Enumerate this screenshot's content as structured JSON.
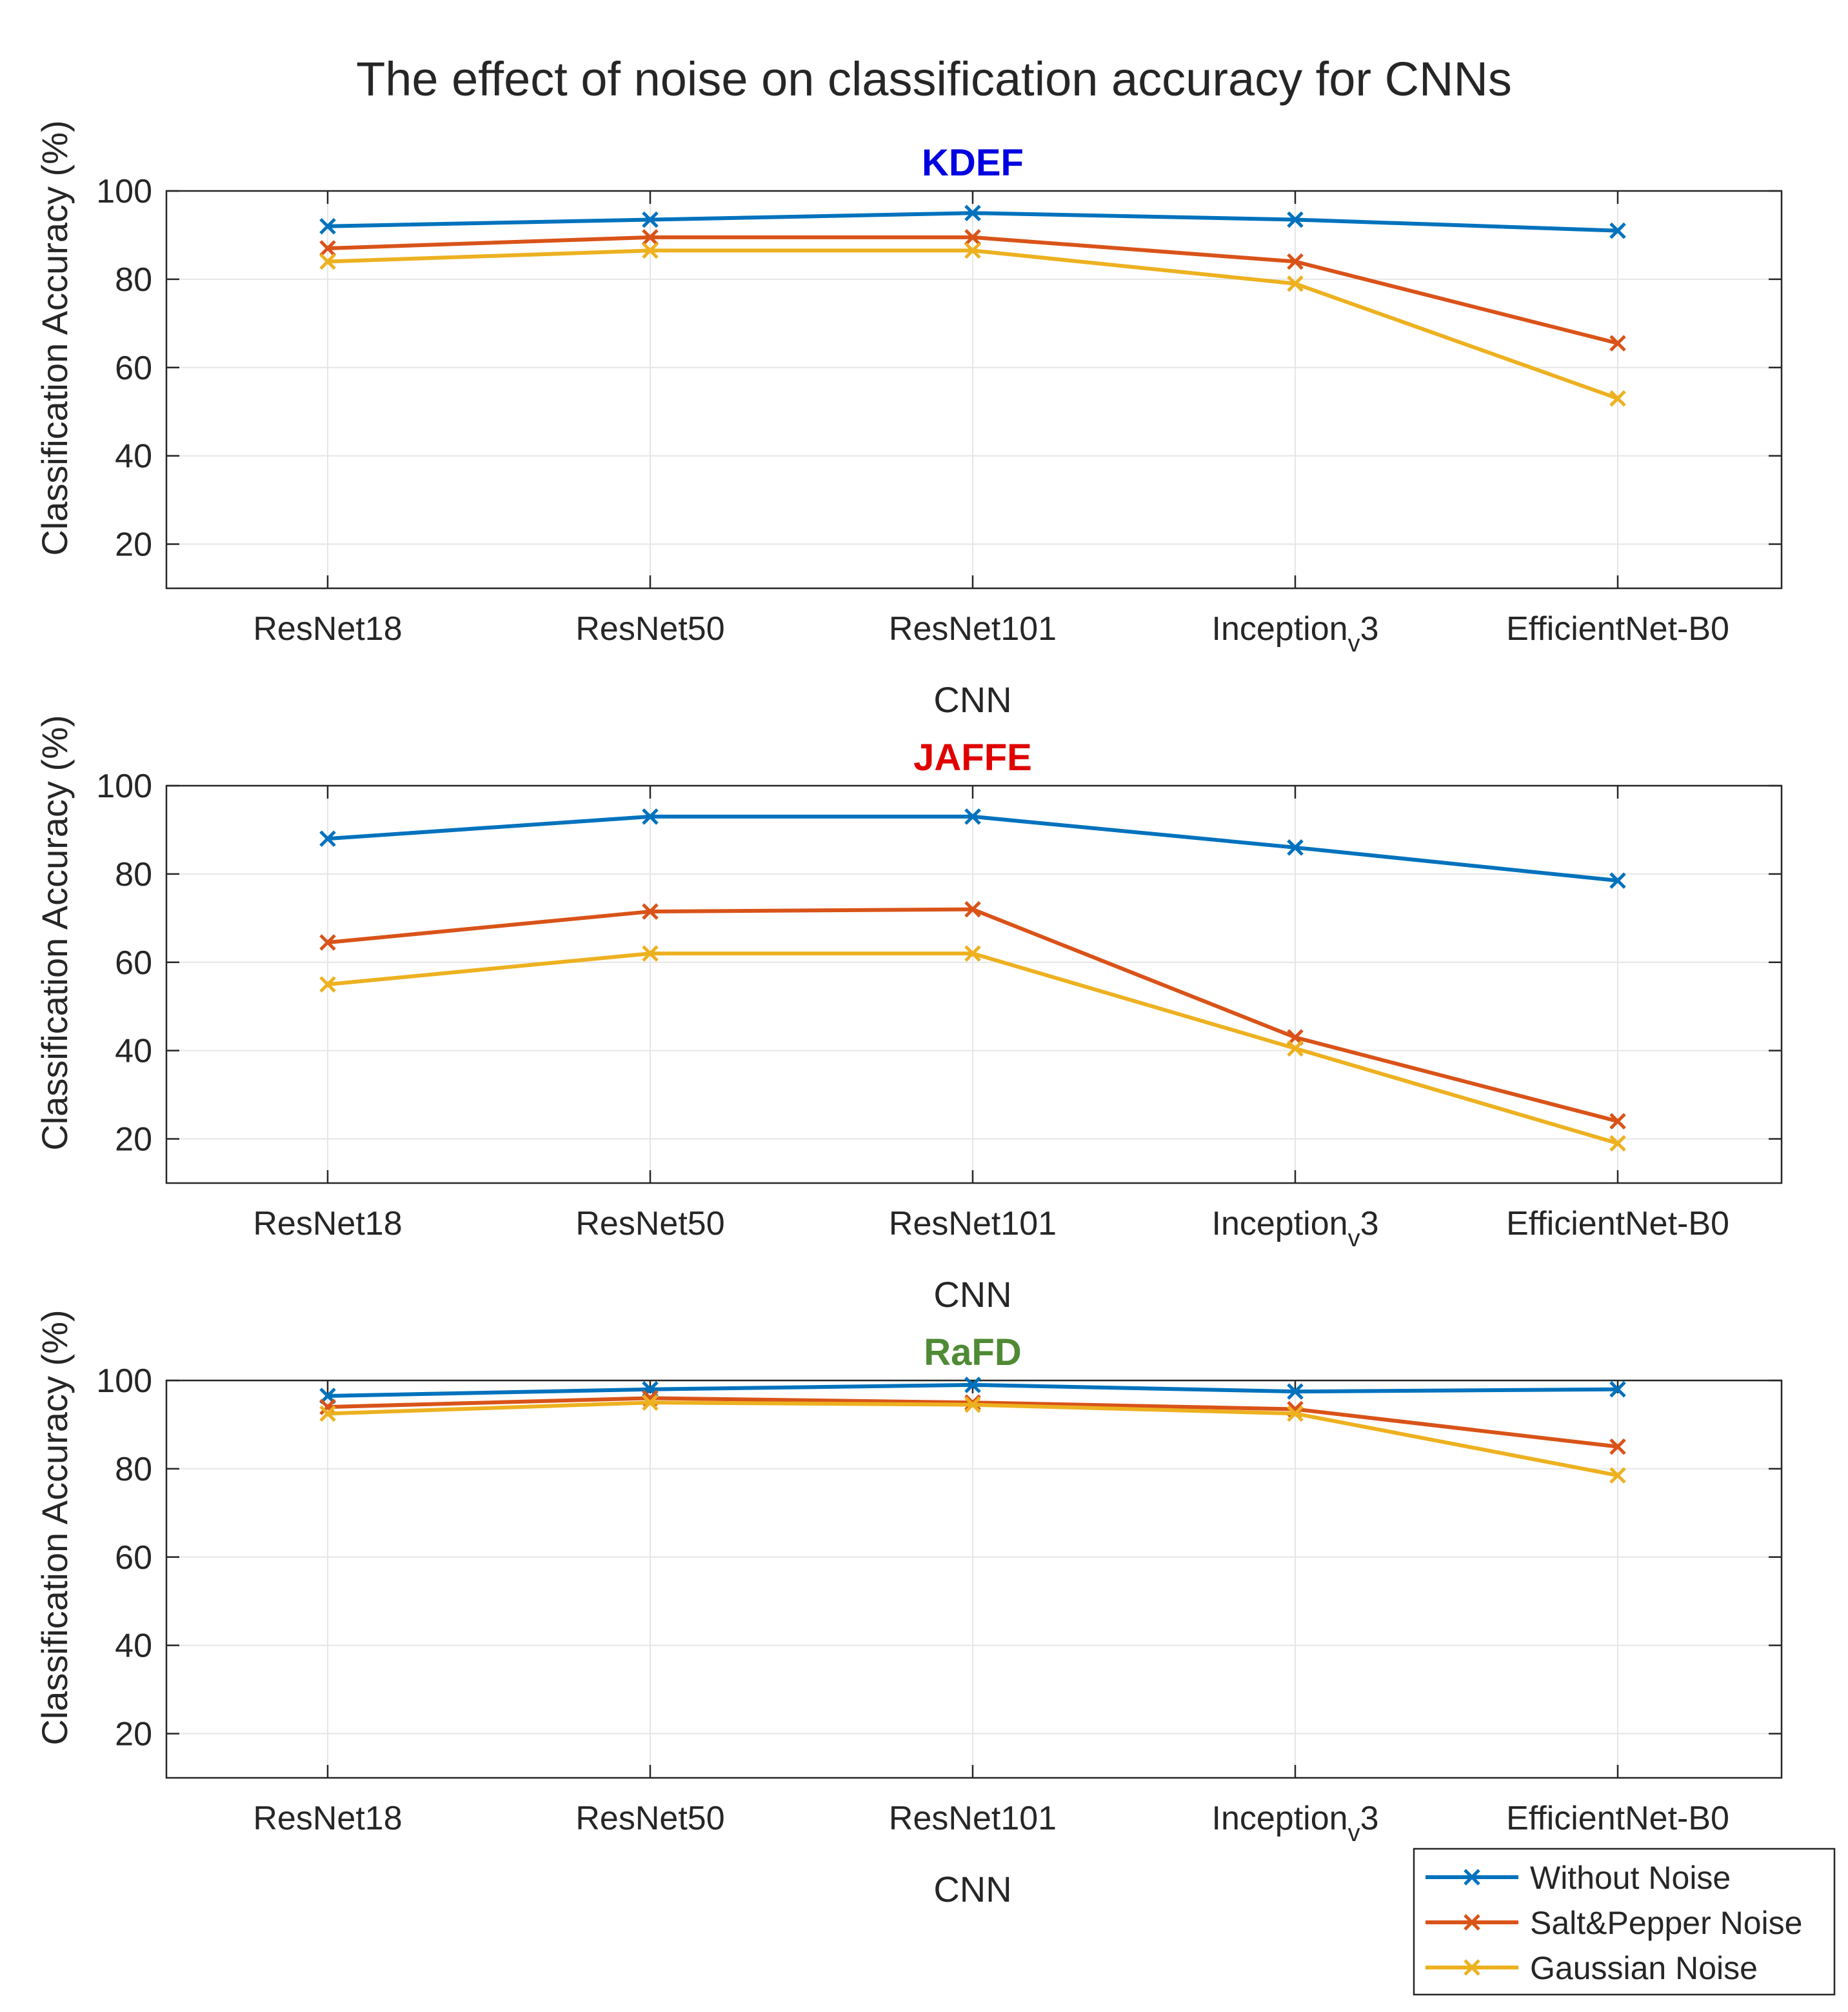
{
  "chart_data": {
    "type": "line",
    "title": "The effect of noise on classification accuracy for CNNs",
    "categories": [
      "ResNet18",
      "ResNet50",
      "ResNet101",
      "Inception_v3",
      "EfficientNet-B0"
    ],
    "category_labels": [
      {
        "main": "ResNet18",
        "sub": "",
        "tail": ""
      },
      {
        "main": "ResNet50",
        "sub": "",
        "tail": ""
      },
      {
        "main": "ResNet101",
        "sub": "",
        "tail": ""
      },
      {
        "main": "Inception",
        "sub": "v",
        "tail": "3"
      },
      {
        "main": "EfficientNet-B0",
        "sub": "",
        "tail": ""
      }
    ],
    "xlabel": "CNN",
    "ylabel": "Classification Accuracy (%)",
    "ylim": [
      10,
      100
    ],
    "yticks": [
      20,
      40,
      60,
      80,
      100
    ],
    "grid": true,
    "series_styles": [
      {
        "name": "Without Noise",
        "color": "#0072BD",
        "marker": "x"
      },
      {
        "name": "Salt&Pepper Noise",
        "color": "#D95319",
        "marker": "x"
      },
      {
        "name": "Gaussian Noise",
        "color": "#EDB120",
        "marker": "x"
      }
    ],
    "panels": [
      {
        "title": "KDEF",
        "title_color": "#0000E0",
        "series": [
          {
            "name": "Without Noise",
            "values": [
              92,
              93.5,
              95,
              93.5,
              91
            ]
          },
          {
            "name": "Salt&Pepper Noise",
            "values": [
              87,
              89.5,
              89.5,
              84,
              65.5
            ]
          },
          {
            "name": "Gaussian Noise",
            "values": [
              84,
              86.5,
              86.5,
              79,
              53
            ]
          }
        ]
      },
      {
        "title": "JAFFE",
        "title_color": "#E00000",
        "series": [
          {
            "name": "Without Noise",
            "values": [
              88,
              93,
              93,
              86,
              78.5
            ]
          },
          {
            "name": "Salt&Pepper Noise",
            "values": [
              64.5,
              71.5,
              72,
              43,
              24
            ]
          },
          {
            "name": "Gaussian Noise",
            "values": [
              55,
              62,
              62,
              40.5,
              19
            ]
          }
        ]
      },
      {
        "title": "RaFD",
        "title_color": "#4F8A34",
        "series": [
          {
            "name": "Without Noise",
            "values": [
              96.5,
              98,
              99,
              97.5,
              98
            ]
          },
          {
            "name": "Salt&Pepper Noise",
            "values": [
              94,
              96,
              95,
              93.5,
              85
            ]
          },
          {
            "name": "Gaussian Noise",
            "values": [
              92.5,
              95,
              94.5,
              92.5,
              78.5
            ]
          }
        ]
      }
    ],
    "legend": {
      "position": "bottom-right",
      "entries": [
        "Without Noise",
        "Salt&Pepper Noise",
        "Gaussian Noise"
      ]
    }
  }
}
